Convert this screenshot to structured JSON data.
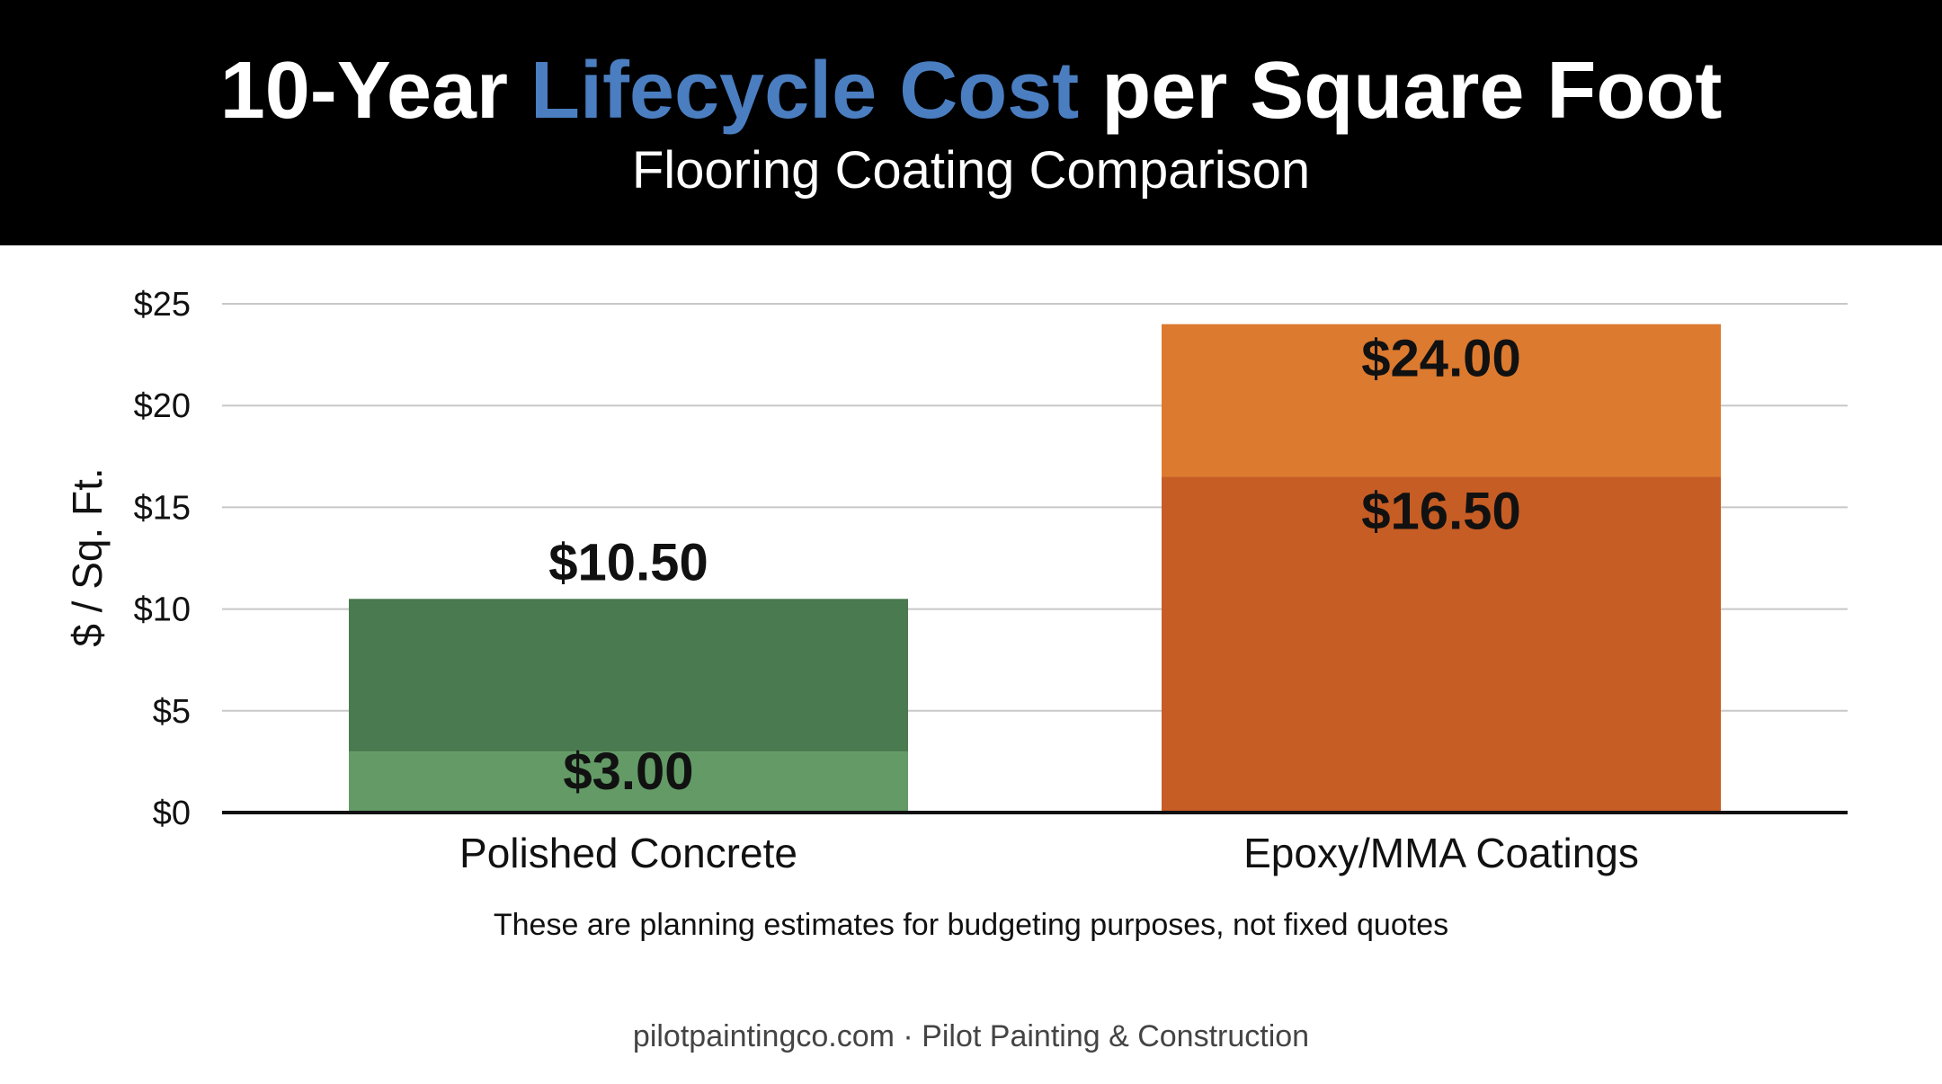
{
  "header": {
    "title_part1": "10-Year ",
    "title_accent": "Lifecycle Cost",
    "title_part2": " per Square Foot",
    "subtitle": "Flooring Coating Comparison",
    "accent_color": "#4a7ec1"
  },
  "chart_data": {
    "type": "bar",
    "stacked": true,
    "ylabel": "$ / Sq. Ft.",
    "ylim": [
      0,
      25
    ],
    "yticks": [
      0,
      5,
      10,
      15,
      20,
      25
    ],
    "ytick_labels": [
      "$0",
      "$5",
      "$10",
      "$15",
      "$20",
      "$25"
    ],
    "grid": true,
    "categories": [
      "Polished Concrete",
      "Epoxy/MMA Coatings"
    ],
    "bars": [
      {
        "category": "Polished Concrete",
        "segments": [
          {
            "value": 3.0,
            "color": "#639a66"
          },
          {
            "value": 7.5,
            "color": "#4a7a4f"
          }
        ],
        "labels": [
          {
            "text": "$3.00",
            "value": 3.0
          },
          {
            "text": "$10.50",
            "value": 10.5
          }
        ]
      },
      {
        "category": "Epoxy/MMA Coatings",
        "segments": [
          {
            "value": 16.5,
            "color": "#c65d24"
          },
          {
            "value": 7.5,
            "color": "#dc7a2f"
          }
        ],
        "labels": [
          {
            "text": "$16.50",
            "value": 16.5
          },
          {
            "text": "$24.00",
            "value": 24.0
          }
        ]
      }
    ]
  },
  "footnote": "These are planning estimates for budgeting purposes, not fixed quotes",
  "footer": "pilotpaintingco.com · Pilot Painting & Construction"
}
